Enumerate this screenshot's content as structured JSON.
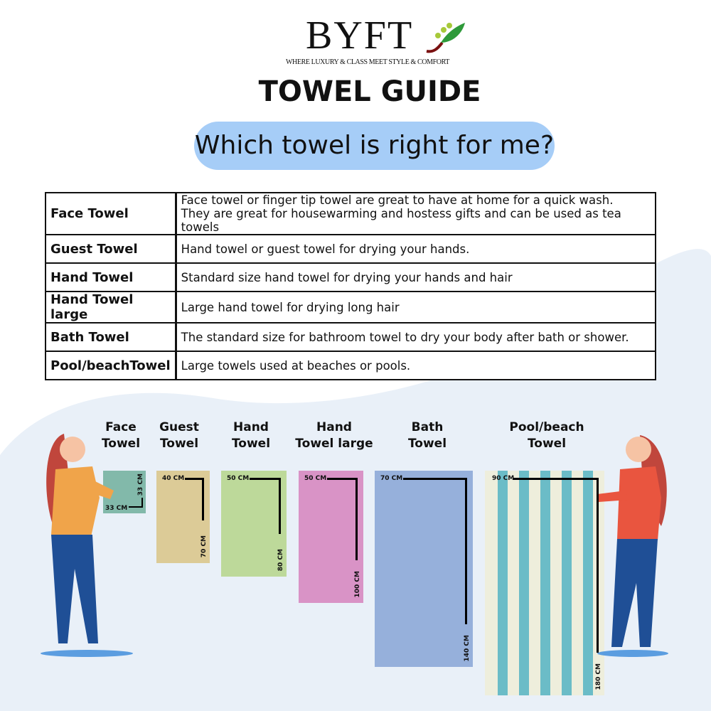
{
  "brand": {
    "name": "BYFT",
    "tagline": "WHERE LUXURY & CLASS MEET STYLE & COMFORT"
  },
  "title": "TOWEL GUIDE",
  "subtitle": "Which towel is right for me?",
  "table": [
    {
      "name": "Face Towel",
      "desc": "Face towel or finger tip towel are great to have at home for a quick wash.",
      "desc2": "They are great for housewarming and hostess gifts and can be used as tea towels"
    },
    {
      "name": "Guest Towel",
      "desc": "Hand towel or guest towel for drying your hands."
    },
    {
      "name": "Hand Towel",
      "desc": "Standard size hand towel for drying your hands and hair"
    },
    {
      "name": "Hand Towel large",
      "desc": "Large hand towel for drying long hair"
    },
    {
      "name": "Bath Towel",
      "desc": "The standard size for bathroom towel to dry your body after bath or shower."
    },
    {
      "name": "Pool/beachTowel",
      "desc": "Large towels used at beaches or pools."
    }
  ],
  "towels": [
    {
      "l1": "Face",
      "l2": "Towel",
      "w": "33 CM",
      "h": "33 CM",
      "color": "#82b9aa"
    },
    {
      "l1": "Guest",
      "l2": "Towel",
      "w": "40 CM",
      "h": "70 CM",
      "color": "#dccb97"
    },
    {
      "l1": "Hand",
      "l2": "Towel",
      "w": "50 CM",
      "h": "80 CM",
      "color": "#bdd99a"
    },
    {
      "l1": "Hand",
      "l2": "Towel large",
      "w": "50 CM",
      "h": "100 CM",
      "color": "#d993c6"
    },
    {
      "l1": "Bath",
      "l2": "Towel",
      "w": "70 CM",
      "h": "140 CM",
      "color": "#96b0db"
    },
    {
      "l1": "Pool/beach",
      "l2": "Towel",
      "w": "90 CM",
      "h": "180 CM",
      "color": "#eeeedc",
      "stripe": "#6bbcc7"
    }
  ]
}
